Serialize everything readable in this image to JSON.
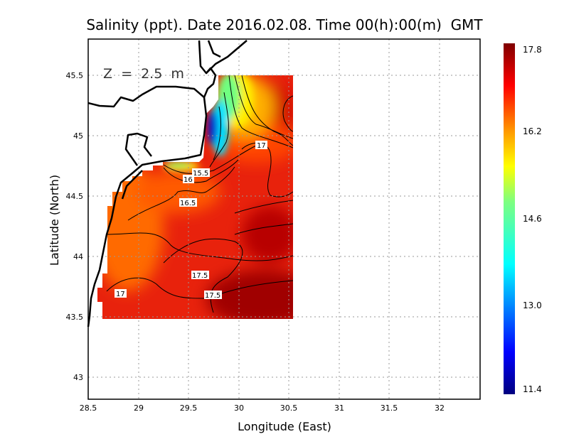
{
  "chart_data": {
    "type": "heatmap",
    "subtype": "filled contour map",
    "title": "Salinity (ppt). Date 2016.02.08. Time 00(h):00(m)  GMT",
    "xlabel": "Longitude (East)",
    "ylabel": "Latitude (North)",
    "annotation": "Z  =  2.5  m",
    "xlim": [
      28.5,
      32.4
    ],
    "ylim": [
      42.8,
      45.8
    ],
    "x_ticks": [
      "28.5",
      "29",
      "29.5",
      "30",
      "30.5",
      "31",
      "31.5",
      "32"
    ],
    "y_ticks": [
      "43",
      "43.5",
      "44",
      "44.5",
      "45",
      "45.5"
    ],
    "grid": true,
    "colorbar": {
      "range": [
        11.4,
        17.8
      ],
      "ticks": [
        "17.8",
        "16.2",
        "14.6",
        "13.0",
        "11.4"
      ],
      "colormap": "jet",
      "placement": "right"
    },
    "contour_labels": [
      "17",
      "15.5",
      "16",
      "16.5",
      "17.5",
      "17.5",
      "17"
    ],
    "colors": {
      "coast": "#000000",
      "high": "#8b0000",
      "mid": "#ffff00",
      "low": "#00008b",
      "grid": "#999999"
    }
  }
}
